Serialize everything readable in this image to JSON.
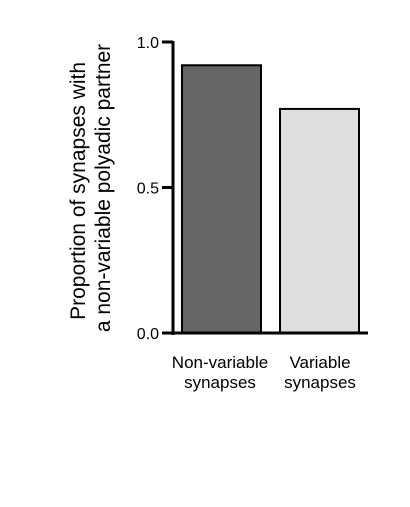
{
  "chart_data": {
    "type": "bar",
    "title": "",
    "ylabel_lines": [
      "Proportion of synapses with",
      "a non-variable polyadic partner"
    ],
    "xlabel": "",
    "ylim": [
      0,
      1.0
    ],
    "yticks": [
      {
        "value": 0.0,
        "label": "0.0"
      },
      {
        "value": 0.5,
        "label": "0.5"
      },
      {
        "value": 1.0,
        "label": "1.0"
      }
    ],
    "categories": [
      {
        "lines": [
          "Non-variable",
          "synapses"
        ],
        "value": 0.92,
        "color": "#666666"
      },
      {
        "lines": [
          "Variable",
          "synapses"
        ],
        "value": 0.77,
        "color": "#dedede"
      }
    ],
    "grid": false,
    "legend": "none"
  }
}
